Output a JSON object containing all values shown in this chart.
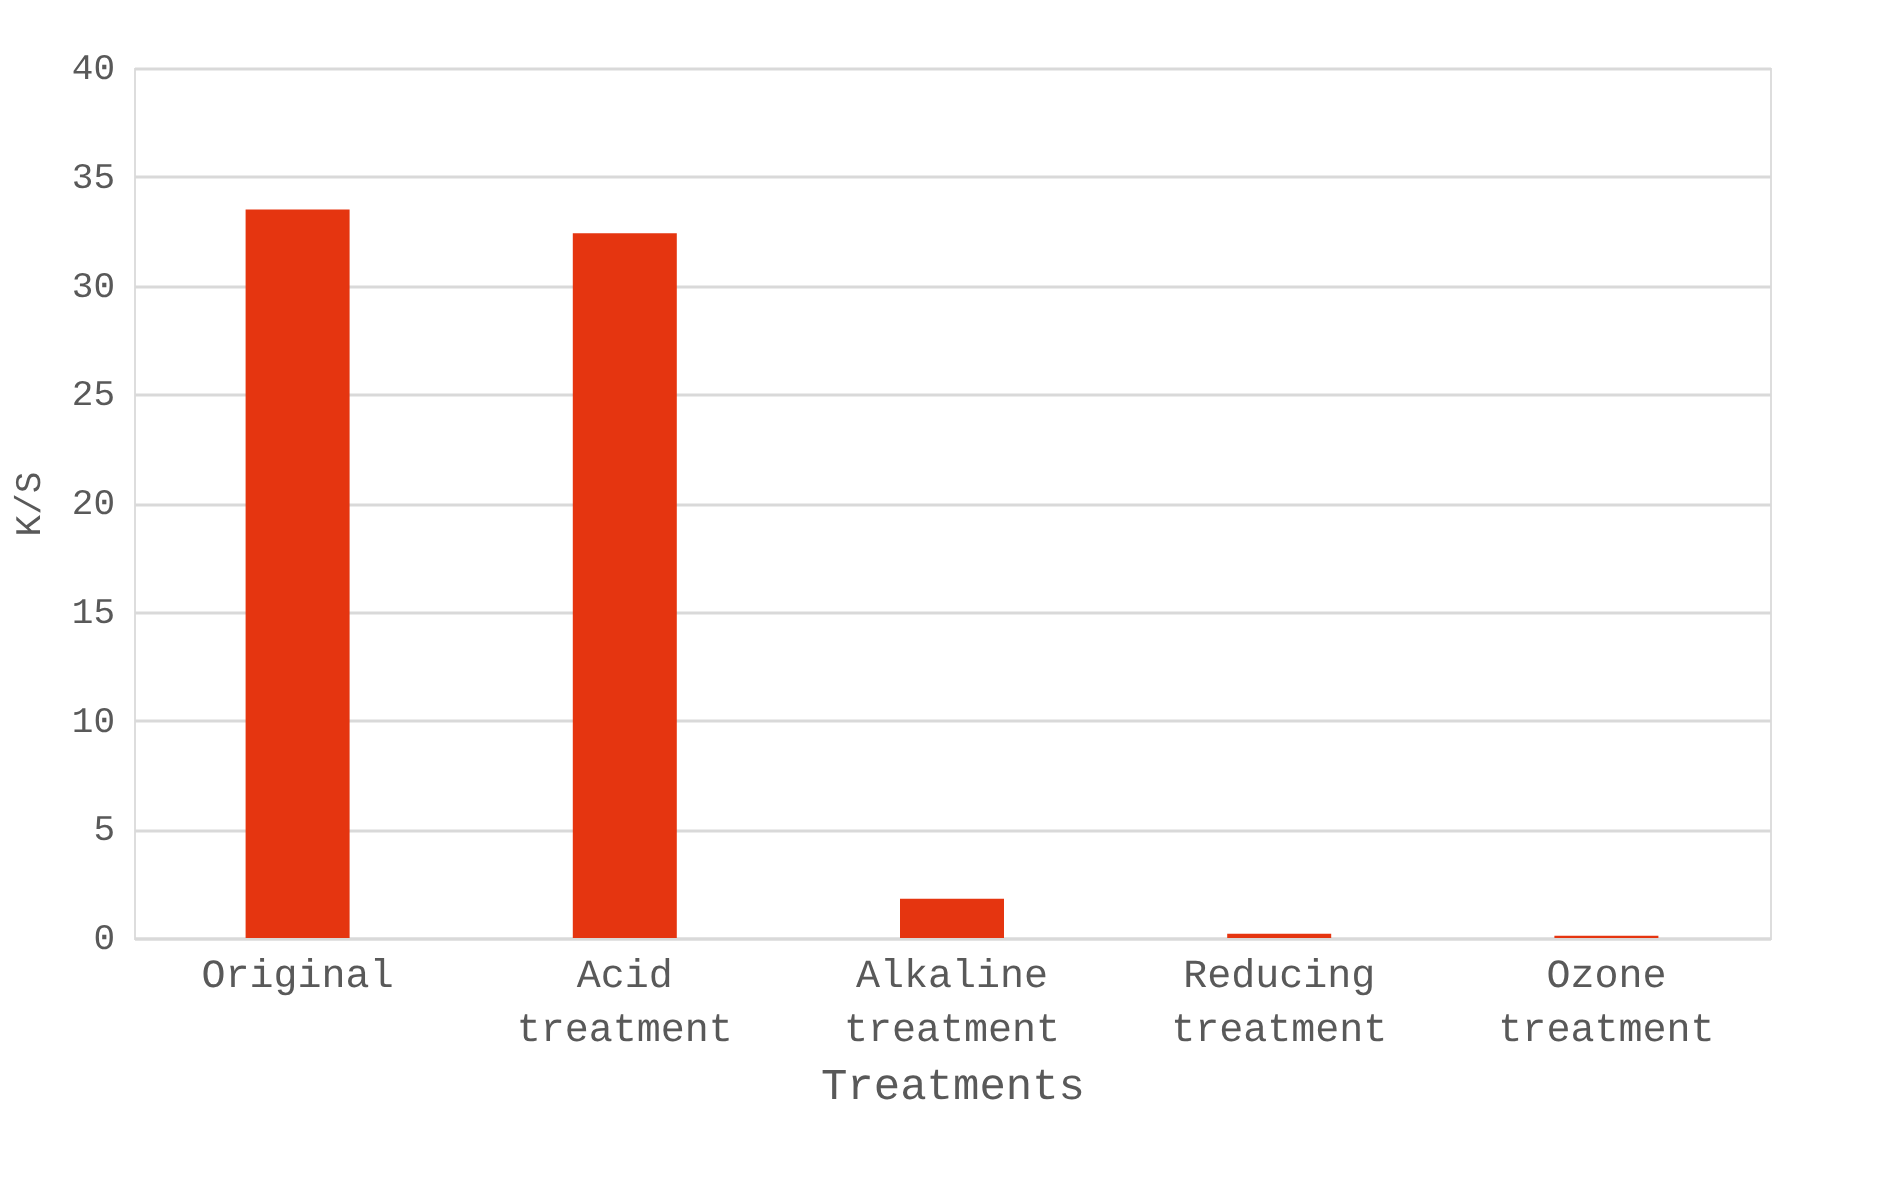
{
  "chart_data": {
    "type": "bar",
    "xlabel": "Treatments",
    "ylabel": "K/S",
    "categories": [
      "Original",
      "Acid treatment",
      "Alkaline treatment",
      "Reducing treatment",
      "Ozone treatment"
    ],
    "values": [
      33.5,
      32.4,
      1.8,
      0.2,
      0.1
    ],
    "color": "#e53510",
    "ylim": [
      0,
      40
    ],
    "yticks": [
      0,
      5,
      10,
      15,
      20,
      25,
      30,
      35,
      40
    ],
    "grid": "y"
  }
}
